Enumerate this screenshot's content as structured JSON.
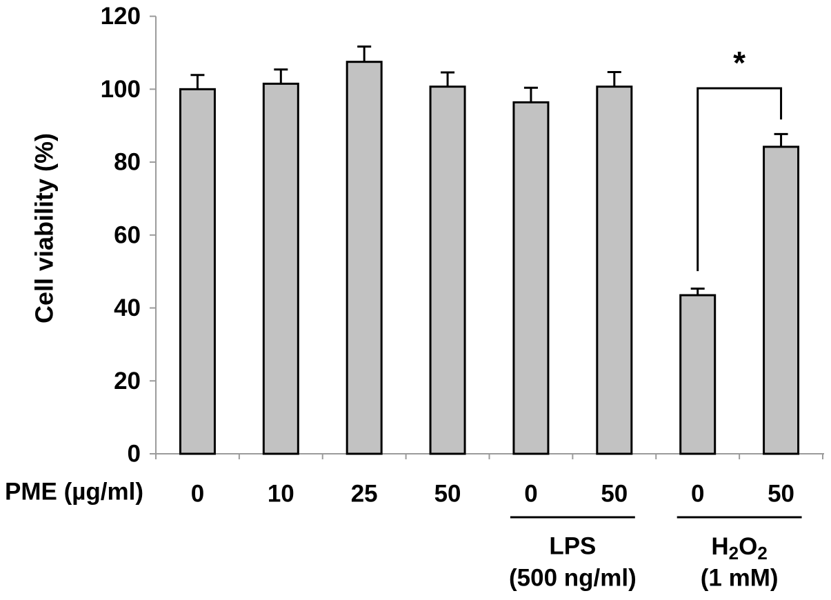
{
  "figure": {
    "background": "#ffffff",
    "description": "Bar chart of cell viability (%) under PME treatment alone, with LPS, and with H2O2"
  },
  "chart_data": {
    "type": "bar",
    "title": "",
    "ylabel": "Cell viability (%)",
    "xlabel_prefix": "PME (µg/ml)",
    "ylim": [
      0,
      120
    ],
    "yticks": [
      0,
      20,
      40,
      60,
      80,
      100,
      120
    ],
    "grid": false,
    "legend": null,
    "categories": [
      "0",
      "10",
      "25",
      "50",
      "0",
      "50",
      "0",
      "50"
    ],
    "values": [
      100,
      101.5,
      107.5,
      100.7,
      96.4,
      100.7,
      43.5,
      84.2
    ],
    "errors_up": [
      3.9,
      3.9,
      4.2,
      3.9,
      4.0,
      4.0,
      1.8,
      3.5
    ],
    "bar_fill": "#c2c2c2",
    "bar_stroke": "#000000",
    "axis_color": "#9b9b9b",
    "groups": [
      {
        "name": "LPS",
        "dose": "(500 ng/ml)",
        "span": [
          4,
          5
        ],
        "subscript_digits": false
      },
      {
        "name": "H2O2",
        "dose": "(1 mM)",
        "span": [
          6,
          7
        ],
        "subscript_digits": true
      }
    ],
    "significance": {
      "label": "*",
      "from_index": 6,
      "to_index": 7,
      "top_value": 100.25,
      "left_end_value": 50.1,
      "right_end_value": 91.7
    }
  }
}
